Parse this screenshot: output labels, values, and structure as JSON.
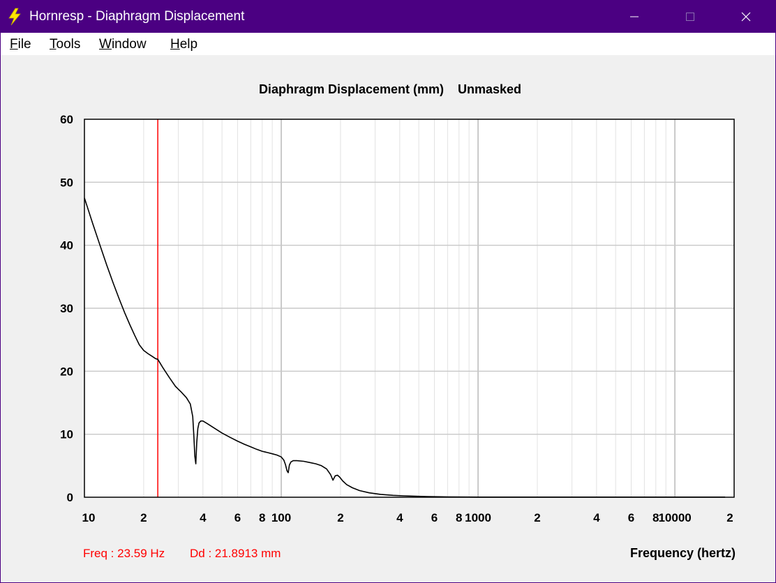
{
  "window": {
    "title": "Hornresp - Diaphragm Displacement",
    "controls": [
      "minimize",
      "maximize",
      "close"
    ],
    "icon": "lightning-bolt-icon"
  },
  "menu": [
    {
      "mnemonic": "F",
      "rest": "ile"
    },
    {
      "mnemonic": "T",
      "rest": "ools"
    },
    {
      "mnemonic": "W",
      "rest": "indow"
    },
    {
      "mnemonic": "H",
      "rest": "elp"
    }
  ],
  "status": {
    "freq": "Freq : 23.59 Hz",
    "dd": "Dd : 21.8913 mm"
  },
  "colors": {
    "titlebar": "#4b0082",
    "curve": "#000000",
    "cursor": "#ff0000",
    "grid": "#c8c8c8",
    "status_text": "#ff0000"
  },
  "chart_data": {
    "type": "line",
    "title": "Diaphragm Displacement (mm)",
    "title_suffix": "Unmasked",
    "xlabel": "Frequency (hertz)",
    "ylabel": "",
    "x_scale": "log",
    "xlim": [
      10,
      20000
    ],
    "ylim": [
      0,
      60
    ],
    "yticks": [
      0,
      10,
      20,
      30,
      40,
      50,
      60
    ],
    "xtick_labels": [
      {
        "value": 10,
        "label": "10"
      },
      {
        "value": 20,
        "label": "2"
      },
      {
        "value": 40,
        "label": "4"
      },
      {
        "value": 60,
        "label": "6"
      },
      {
        "value": 80,
        "label": "8"
      },
      {
        "value": 100,
        "label": "100"
      },
      {
        "value": 200,
        "label": "2"
      },
      {
        "value": 400,
        "label": "4"
      },
      {
        "value": 600,
        "label": "6"
      },
      {
        "value": 800,
        "label": "8"
      },
      {
        "value": 1000,
        "label": "1000"
      },
      {
        "value": 2000,
        "label": "2"
      },
      {
        "value": 4000,
        "label": "4"
      },
      {
        "value": 6000,
        "label": "6"
      },
      {
        "value": 8000,
        "label": "8"
      },
      {
        "value": 10000,
        "label": "10000"
      },
      {
        "value": 20000,
        "label": "2"
      }
    ],
    "grid": true,
    "cursor": {
      "x": 23.59,
      "y": 21.8913
    },
    "series": [
      {
        "x": [
          10,
          11,
          12,
          13,
          14,
          15,
          16,
          17,
          18,
          19,
          20,
          21,
          22,
          23,
          23.59,
          25,
          27,
          29,
          31,
          33,
          34.5,
          35.5,
          36,
          36.4,
          36.8,
          37.2,
          37.7,
          38.2,
          39,
          40,
          42,
          45,
          50,
          55,
          60,
          65,
          70,
          75,
          80,
          85,
          90,
          95,
          100,
          103,
          105,
          107,
          108.5,
          110,
          112,
          115,
          120,
          130,
          140,
          150,
          160,
          170,
          178,
          183,
          188,
          193,
          198,
          205,
          215,
          230,
          250,
          280,
          320,
          370,
          420,
          480,
          550,
          700,
          1000,
          2000,
          5000,
          10000,
          18000
        ],
        "y": [
          47.5,
          43.5,
          40,
          36.8,
          34,
          31.5,
          29.3,
          27.4,
          25.7,
          24.2,
          23.3,
          22.8,
          22.4,
          22,
          21.9,
          20.6,
          19,
          17.6,
          16.7,
          15.8,
          14.8,
          12.8,
          9.5,
          6.5,
          5.3,
          8.6,
          10.9,
          11.8,
          12.1,
          12.1,
          11.7,
          11.1,
          10.2,
          9.5,
          8.9,
          8.4,
          8,
          7.6,
          7.3,
          7.1,
          6.9,
          6.7,
          6.4,
          5.9,
          5.2,
          4.2,
          3.9,
          5.1,
          5.6,
          5.8,
          5.8,
          5.7,
          5.5,
          5.3,
          5,
          4.5,
          3.6,
          2.7,
          3.4,
          3.5,
          3.2,
          2.6,
          2,
          1.5,
          1.05,
          0.7,
          0.45,
          0.3,
          0.22,
          0.15,
          0.1,
          0.05,
          0.02,
          0.02,
          0.02,
          0.02,
          0.02
        ]
      }
    ]
  }
}
